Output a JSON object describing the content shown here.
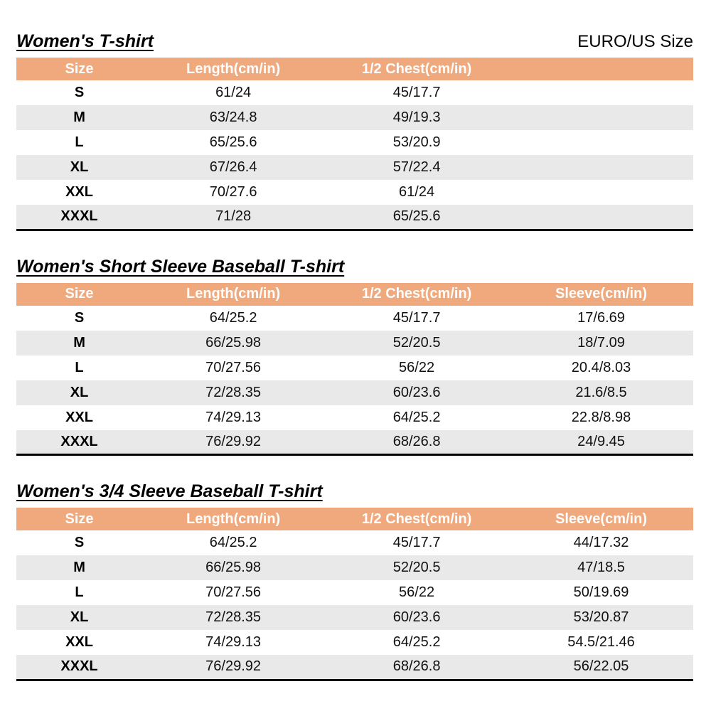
{
  "page": {
    "standard_label": "EURO/US Size"
  },
  "colors": {
    "header_bg": "#F0A97C",
    "header_text": "#FDFDFD",
    "stripe_bg": "#E9E9E9",
    "text": "#111111",
    "table_bottom_border": "#000000"
  },
  "tables": [
    {
      "title": "Women's T-shirt",
      "headers": [
        "Size",
        "Length(cm/in)",
        "1/2 Chest(cm/in)",
        ""
      ],
      "rows": [
        [
          "S",
          "61/24",
          "45/17.7",
          ""
        ],
        [
          "M",
          "63/24.8",
          "49/19.3",
          ""
        ],
        [
          "L",
          "65/25.6",
          "53/20.9",
          ""
        ],
        [
          "XL",
          "67/26.4",
          "57/22.4",
          ""
        ],
        [
          "XXL",
          "70/27.6",
          "61/24",
          ""
        ],
        [
          "XXXL",
          "71/28",
          "65/25.6",
          ""
        ]
      ]
    },
    {
      "title": "Women's Short Sleeve Baseball T-shirt",
      "headers": [
        "Size",
        "Length(cm/in)",
        "1/2 Chest(cm/in)",
        "Sleeve(cm/in)"
      ],
      "rows": [
        [
          "S",
          "64/25.2",
          "45/17.7",
          "17/6.69"
        ],
        [
          "M",
          "66/25.98",
          "52/20.5",
          "18/7.09"
        ],
        [
          "L",
          "70/27.56",
          "56/22",
          "20.4/8.03"
        ],
        [
          "XL",
          "72/28.35",
          "60/23.6",
          "21.6/8.5"
        ],
        [
          "XXL",
          "74/29.13",
          "64/25.2",
          "22.8/8.98"
        ],
        [
          "XXXL",
          "76/29.92",
          "68/26.8",
          "24/9.45"
        ]
      ]
    },
    {
      "title": "Women's 3/4 Sleeve Baseball T-shirt",
      "headers": [
        "Size",
        "Length(cm/in)",
        "1/2 Chest(cm/in)",
        "Sleeve(cm/in)"
      ],
      "rows": [
        [
          "S",
          "64/25.2",
          "45/17.7",
          "44/17.32"
        ],
        [
          "M",
          "66/25.98",
          "52/20.5",
          "47/18.5"
        ],
        [
          "L",
          "70/27.56",
          "56/22",
          "50/19.69"
        ],
        [
          "XL",
          "72/28.35",
          "60/23.6",
          "53/20.87"
        ],
        [
          "XXL",
          "74/29.13",
          "64/25.2",
          "54.5/21.46"
        ],
        [
          "XXXL",
          "76/29.92",
          "68/26.8",
          "56/22.05"
        ]
      ]
    }
  ]
}
